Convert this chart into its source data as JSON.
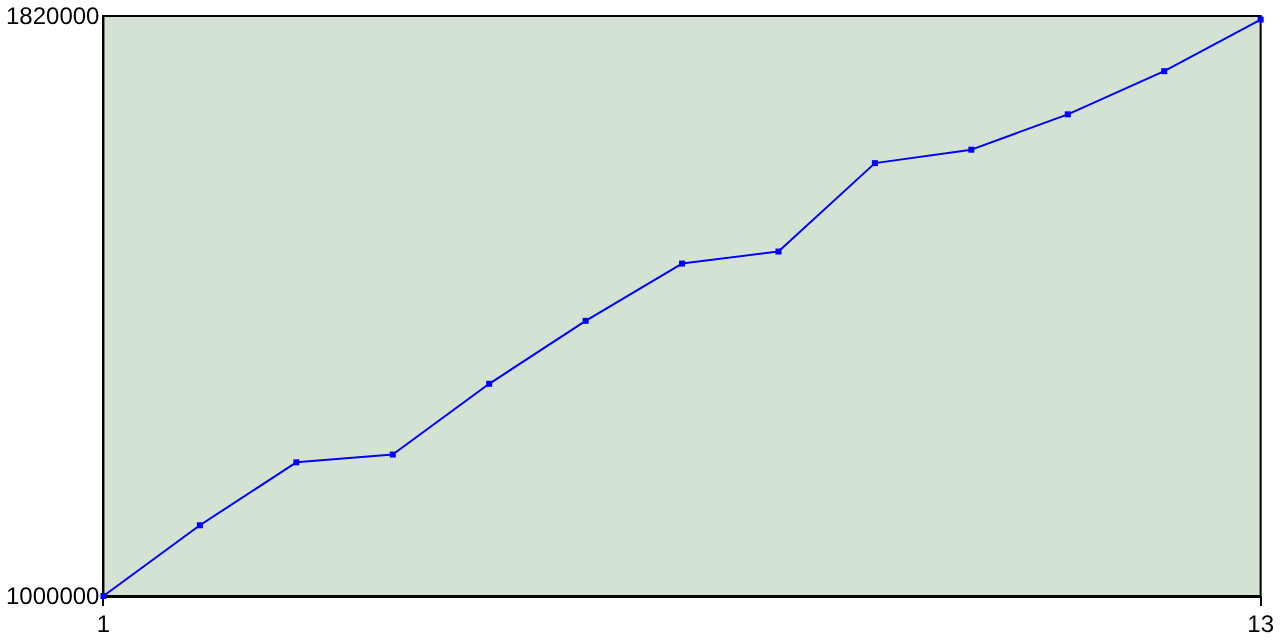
{
  "chart_data": {
    "type": "line",
    "x": [
      1,
      2,
      3,
      4,
      5,
      6,
      7,
      8,
      9,
      10,
      11,
      12,
      13
    ],
    "series": [
      {
        "color": "#0000ff",
        "values": [
          1000000,
          1100000,
          1189000,
          1200000,
          1300000,
          1389000,
          1470000,
          1487000,
          1612000,
          1631000,
          1681000,
          1742000,
          1815000
        ]
      }
    ],
    "xlim": [
      1,
      13
    ],
    "xticks": [
      1,
      13
    ],
    "ylim": [
      1000000,
      1820000
    ],
    "yticks": [
      1000000,
      1820000
    ],
    "grid": false,
    "marker": "square",
    "line_style": "solid"
  }
}
